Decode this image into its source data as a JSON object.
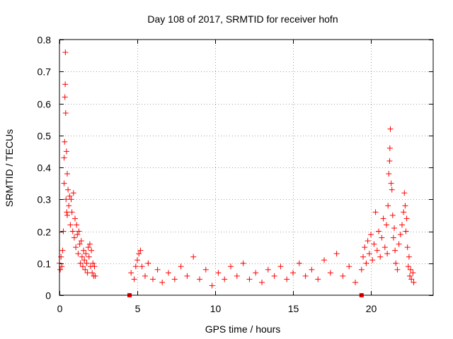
{
  "chart_data": {
    "type": "scatter",
    "title": "Day 108 of 2017, SRMTID for receiver hofn",
    "xlabel": "GPS time / hours",
    "ylabel": "SRMTID / TECUs",
    "xlim": [
      0,
      24
    ],
    "ylim": [
      0,
      0.8
    ],
    "xticks": [
      0,
      5,
      10,
      15,
      20
    ],
    "yticks": [
      0,
      0.1,
      0.2,
      0.3,
      0.4,
      0.5,
      0.6,
      0.7,
      0.8
    ],
    "grid": true,
    "marker": "plus",
    "series": [
      {
        "name": "SRMTID",
        "color": "#ff0000",
        "points": [
          [
            0.0,
            0.1
          ],
          [
            0.05,
            0.08
          ],
          [
            0.1,
            0.12
          ],
          [
            0.15,
            0.09
          ],
          [
            0.2,
            0.14
          ],
          [
            0.25,
            0.2
          ],
          [
            0.3,
            0.35
          ],
          [
            0.3,
            0.43
          ],
          [
            0.33,
            0.48
          ],
          [
            0.35,
            0.62
          ],
          [
            0.37,
            0.66
          ],
          [
            0.38,
            0.76
          ],
          [
            0.4,
            0.57
          ],
          [
            0.42,
            0.3
          ],
          [
            0.45,
            0.45
          ],
          [
            0.47,
            0.26
          ],
          [
            0.5,
            0.38
          ],
          [
            0.5,
            0.25
          ],
          [
            0.55,
            0.33
          ],
          [
            0.6,
            0.28
          ],
          [
            0.65,
            0.31
          ],
          [
            0.7,
            0.22
          ],
          [
            0.75,
            0.3
          ],
          [
            0.8,
            0.26
          ],
          [
            0.85,
            0.2
          ],
          [
            0.9,
            0.32
          ],
          [
            0.95,
            0.18
          ],
          [
            1.0,
            0.24
          ],
          [
            1.05,
            0.15
          ],
          [
            1.1,
            0.22
          ],
          [
            1.15,
            0.19
          ],
          [
            1.2,
            0.13
          ],
          [
            1.25,
            0.2
          ],
          [
            1.3,
            0.16
          ],
          [
            1.35,
            0.1
          ],
          [
            1.4,
            0.17
          ],
          [
            1.45,
            0.12
          ],
          [
            1.5,
            0.09
          ],
          [
            1.55,
            0.14
          ],
          [
            1.6,
            0.11
          ],
          [
            1.65,
            0.08
          ],
          [
            1.7,
            0.13
          ],
          [
            1.75,
            0.1
          ],
          [
            1.8,
            0.07
          ],
          [
            1.85,
            0.15
          ],
          [
            1.9,
            0.12
          ],
          [
            1.95,
            0.16
          ],
          [
            2.0,
            0.09
          ],
          [
            2.05,
            0.14
          ],
          [
            2.1,
            0.07
          ],
          [
            2.15,
            0.1
          ],
          [
            2.2,
            0.06
          ],
          [
            2.25,
            0.09
          ],
          [
            2.3,
            0.06
          ],
          [
            4.5,
            0.0
          ],
          [
            19.4,
            0.0
          ],
          [
            4.6,
            0.07
          ],
          [
            4.8,
            0.05
          ],
          [
            4.9,
            0.09
          ],
          [
            5.0,
            0.11
          ],
          [
            5.1,
            0.13
          ],
          [
            5.2,
            0.14
          ],
          [
            5.3,
            0.09
          ],
          [
            5.5,
            0.06
          ],
          [
            5.7,
            0.1
          ],
          [
            6.0,
            0.05
          ],
          [
            6.3,
            0.08
          ],
          [
            6.6,
            0.04
          ],
          [
            7.0,
            0.07
          ],
          [
            7.4,
            0.05
          ],
          [
            7.8,
            0.09
          ],
          [
            8.2,
            0.06
          ],
          [
            8.6,
            0.12
          ],
          [
            9.0,
            0.05
          ],
          [
            9.4,
            0.08
          ],
          [
            9.8,
            0.03
          ],
          [
            10.2,
            0.07
          ],
          [
            10.6,
            0.05
          ],
          [
            11.0,
            0.09
          ],
          [
            11.4,
            0.06
          ],
          [
            11.8,
            0.1
          ],
          [
            12.2,
            0.05
          ],
          [
            12.6,
            0.07
          ],
          [
            13.0,
            0.04
          ],
          [
            13.4,
            0.08
          ],
          [
            13.8,
            0.06
          ],
          [
            14.2,
            0.09
          ],
          [
            14.6,
            0.05
          ],
          [
            15.0,
            0.07
          ],
          [
            15.4,
            0.1
          ],
          [
            15.8,
            0.06
          ],
          [
            16.2,
            0.08
          ],
          [
            16.6,
            0.05
          ],
          [
            17.0,
            0.11
          ],
          [
            17.4,
            0.07
          ],
          [
            17.8,
            0.13
          ],
          [
            18.2,
            0.06
          ],
          [
            18.6,
            0.09
          ],
          [
            19.0,
            0.04
          ],
          [
            19.4,
            0.08
          ],
          [
            19.5,
            0.12
          ],
          [
            19.6,
            0.15
          ],
          [
            19.7,
            0.1
          ],
          [
            19.8,
            0.17
          ],
          [
            19.9,
            0.13
          ],
          [
            20.0,
            0.19
          ],
          [
            20.1,
            0.11
          ],
          [
            20.2,
            0.16
          ],
          [
            20.3,
            0.26
          ],
          [
            20.4,
            0.14
          ],
          [
            20.5,
            0.2
          ],
          [
            20.6,
            0.12
          ],
          [
            20.7,
            0.18
          ],
          [
            20.8,
            0.24
          ],
          [
            20.9,
            0.15
          ],
          [
            21.0,
            0.22
          ],
          [
            21.05,
            0.13
          ],
          [
            21.1,
            0.28
          ],
          [
            21.15,
            0.38
          ],
          [
            21.2,
            0.42
          ],
          [
            21.22,
            0.46
          ],
          [
            21.25,
            0.52
          ],
          [
            21.3,
            0.35
          ],
          [
            21.35,
            0.33
          ],
          [
            21.4,
            0.25
          ],
          [
            21.45,
            0.18
          ],
          [
            21.5,
            0.21
          ],
          [
            21.55,
            0.14
          ],
          [
            21.6,
            0.1
          ],
          [
            21.7,
            0.08
          ],
          [
            21.8,
            0.16
          ],
          [
            21.9,
            0.19
          ],
          [
            22.0,
            0.22
          ],
          [
            22.1,
            0.26
          ],
          [
            22.15,
            0.32
          ],
          [
            22.2,
            0.28
          ],
          [
            22.25,
            0.2
          ],
          [
            22.3,
            0.24
          ],
          [
            22.35,
            0.15
          ],
          [
            22.4,
            0.09
          ],
          [
            22.45,
            0.12
          ],
          [
            22.5,
            0.06
          ],
          [
            22.55,
            0.08
          ],
          [
            22.6,
            0.05
          ],
          [
            22.7,
            0.07
          ],
          [
            22.75,
            0.04
          ]
        ]
      }
    ]
  }
}
